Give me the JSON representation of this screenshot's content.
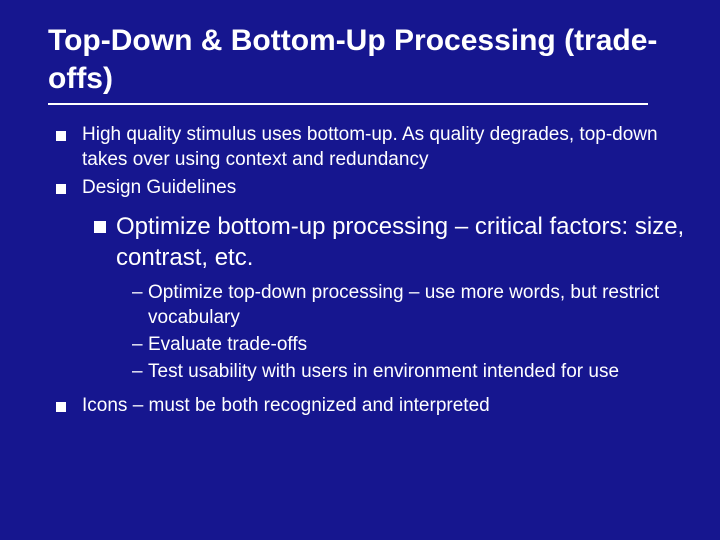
{
  "background_color": "#16168f",
  "text_color": "#ffffff",
  "title_fontsize": 30,
  "lvl1_fontsize": 19,
  "lvl2_fontsize": 24,
  "lvl3_fontsize": 19,
  "underline_width": 600,
  "title": "Top-Down & Bottom-Up Processing (trade-offs)",
  "bullets": {
    "b1": "High quality stimulus uses bottom-up.  As quality degrades, top-down takes over using context and redundancy",
    "b2": "Design Guidelines",
    "sub1_lead": "Optimize",
    "sub1_rest": " bottom-up  processing – critical factors: size, contrast, etc.",
    "d1": "Optimize top-down processing – use more words, but restrict vocabulary",
    "d2": "Evaluate trade-offs",
    "d3": "Test usability with users in environment intended for use",
    "b3": "Icons – must be both recognized and interpreted"
  }
}
